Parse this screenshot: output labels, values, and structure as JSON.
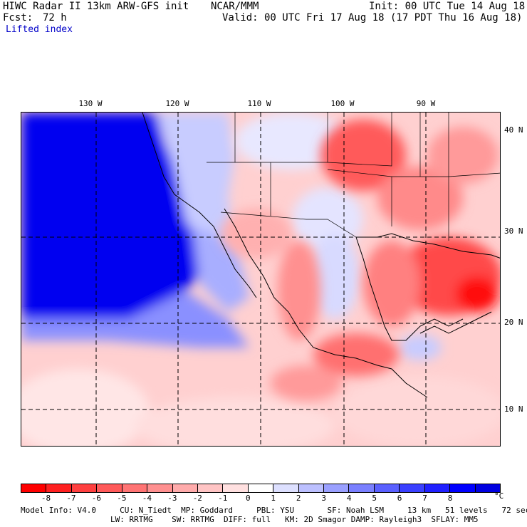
{
  "header": {
    "title": "HIWC Radar II 13km ARW-GFS init",
    "org": "NCAR/MMM",
    "init": "Init: 00 UTC Tue 14 Aug 18",
    "fcst_label": "Fcst:",
    "fcst_value": "72 h",
    "valid": "Valid: 00 UTC Fri 17 Aug 18 (17 PDT Thu 16 Aug 18)",
    "field": "Lifted index"
  },
  "map": {
    "lon_labels": [
      "130 W",
      "120 W",
      "110 W",
      "100 W",
      "90 W"
    ],
    "lat_labels": [
      "40 N",
      "30 N",
      "20 N",
      "10 N"
    ]
  },
  "colorbar": {
    "colors": [
      "#ff0000",
      "#ff2020",
      "#ff4040",
      "#ff5a5a",
      "#ff7474",
      "#ff9090",
      "#ffabab",
      "#ffc4c4",
      "#ffe0e0",
      "#ffffff",
      "#dde0ff",
      "#bcc0ff",
      "#9aa0ff",
      "#7a80ff",
      "#5a60ff",
      "#3a40ff",
      "#2020ff",
      "#0000ff",
      "#0000e0"
    ],
    "ticks": [
      "-8",
      "-7",
      "-6",
      "-5",
      "-4",
      "-3",
      "-2",
      "-1",
      "0",
      "1",
      "2",
      "3",
      "4",
      "5",
      "6",
      "7",
      "8"
    ],
    "unit": "°C"
  },
  "footer": {
    "line1": "Model Info: V4.0     CU: N_Tiedt  MP: Goddard     PBL: YSU       SF: Noah LSM     13 km   51 levels   72 sec",
    "line2": "LW: RRTMG    SW: RRTMG  DIFF: full   KM: 2D Smagor DAMP: Rayleigh3  SFLAY: MM5"
  },
  "colors": {
    "header_text": "#000000",
    "field_label": "#0000c8"
  }
}
